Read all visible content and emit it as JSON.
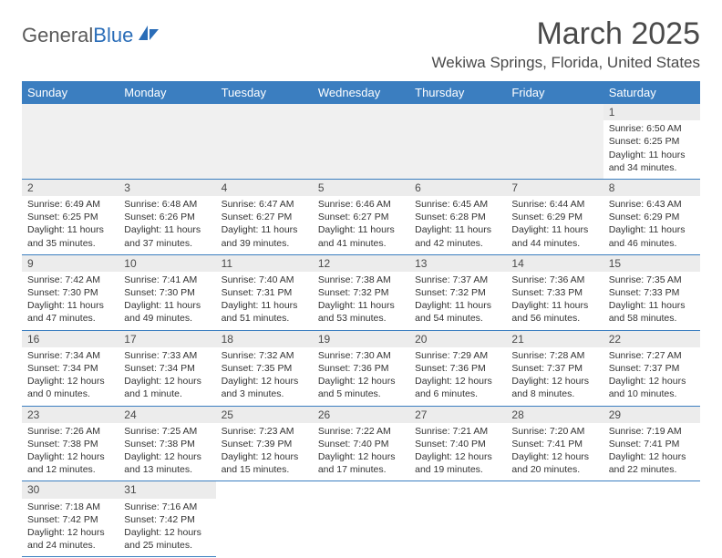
{
  "logo": {
    "text1": "General",
    "text2": "Blue"
  },
  "title": "March 2025",
  "location": "Wekiwa Springs, Florida, United States",
  "header_bg": "#3b7ec0",
  "weekdays": [
    "Sunday",
    "Monday",
    "Tuesday",
    "Wednesday",
    "Thursday",
    "Friday",
    "Saturday"
  ],
  "weeks": [
    [
      null,
      null,
      null,
      null,
      null,
      null,
      {
        "n": "1",
        "sr": "Sunrise: 6:50 AM",
        "ss": "Sunset: 6:25 PM",
        "dl": "Daylight: 11 hours and 34 minutes."
      }
    ],
    [
      {
        "n": "2",
        "sr": "Sunrise: 6:49 AM",
        "ss": "Sunset: 6:25 PM",
        "dl": "Daylight: 11 hours and 35 minutes."
      },
      {
        "n": "3",
        "sr": "Sunrise: 6:48 AM",
        "ss": "Sunset: 6:26 PM",
        "dl": "Daylight: 11 hours and 37 minutes."
      },
      {
        "n": "4",
        "sr": "Sunrise: 6:47 AM",
        "ss": "Sunset: 6:27 PM",
        "dl": "Daylight: 11 hours and 39 minutes."
      },
      {
        "n": "5",
        "sr": "Sunrise: 6:46 AM",
        "ss": "Sunset: 6:27 PM",
        "dl": "Daylight: 11 hours and 41 minutes."
      },
      {
        "n": "6",
        "sr": "Sunrise: 6:45 AM",
        "ss": "Sunset: 6:28 PM",
        "dl": "Daylight: 11 hours and 42 minutes."
      },
      {
        "n": "7",
        "sr": "Sunrise: 6:44 AM",
        "ss": "Sunset: 6:29 PM",
        "dl": "Daylight: 11 hours and 44 minutes."
      },
      {
        "n": "8",
        "sr": "Sunrise: 6:43 AM",
        "ss": "Sunset: 6:29 PM",
        "dl": "Daylight: 11 hours and 46 minutes."
      }
    ],
    [
      {
        "n": "9",
        "sr": "Sunrise: 7:42 AM",
        "ss": "Sunset: 7:30 PM",
        "dl": "Daylight: 11 hours and 47 minutes."
      },
      {
        "n": "10",
        "sr": "Sunrise: 7:41 AM",
        "ss": "Sunset: 7:30 PM",
        "dl": "Daylight: 11 hours and 49 minutes."
      },
      {
        "n": "11",
        "sr": "Sunrise: 7:40 AM",
        "ss": "Sunset: 7:31 PM",
        "dl": "Daylight: 11 hours and 51 minutes."
      },
      {
        "n": "12",
        "sr": "Sunrise: 7:38 AM",
        "ss": "Sunset: 7:32 PM",
        "dl": "Daylight: 11 hours and 53 minutes."
      },
      {
        "n": "13",
        "sr": "Sunrise: 7:37 AM",
        "ss": "Sunset: 7:32 PM",
        "dl": "Daylight: 11 hours and 54 minutes."
      },
      {
        "n": "14",
        "sr": "Sunrise: 7:36 AM",
        "ss": "Sunset: 7:33 PM",
        "dl": "Daylight: 11 hours and 56 minutes."
      },
      {
        "n": "15",
        "sr": "Sunrise: 7:35 AM",
        "ss": "Sunset: 7:33 PM",
        "dl": "Daylight: 11 hours and 58 minutes."
      }
    ],
    [
      {
        "n": "16",
        "sr": "Sunrise: 7:34 AM",
        "ss": "Sunset: 7:34 PM",
        "dl": "Daylight: 12 hours and 0 minutes."
      },
      {
        "n": "17",
        "sr": "Sunrise: 7:33 AM",
        "ss": "Sunset: 7:34 PM",
        "dl": "Daylight: 12 hours and 1 minute."
      },
      {
        "n": "18",
        "sr": "Sunrise: 7:32 AM",
        "ss": "Sunset: 7:35 PM",
        "dl": "Daylight: 12 hours and 3 minutes."
      },
      {
        "n": "19",
        "sr": "Sunrise: 7:30 AM",
        "ss": "Sunset: 7:36 PM",
        "dl": "Daylight: 12 hours and 5 minutes."
      },
      {
        "n": "20",
        "sr": "Sunrise: 7:29 AM",
        "ss": "Sunset: 7:36 PM",
        "dl": "Daylight: 12 hours and 6 minutes."
      },
      {
        "n": "21",
        "sr": "Sunrise: 7:28 AM",
        "ss": "Sunset: 7:37 PM",
        "dl": "Daylight: 12 hours and 8 minutes."
      },
      {
        "n": "22",
        "sr": "Sunrise: 7:27 AM",
        "ss": "Sunset: 7:37 PM",
        "dl": "Daylight: 12 hours and 10 minutes."
      }
    ],
    [
      {
        "n": "23",
        "sr": "Sunrise: 7:26 AM",
        "ss": "Sunset: 7:38 PM",
        "dl": "Daylight: 12 hours and 12 minutes."
      },
      {
        "n": "24",
        "sr": "Sunrise: 7:25 AM",
        "ss": "Sunset: 7:38 PM",
        "dl": "Daylight: 12 hours and 13 minutes."
      },
      {
        "n": "25",
        "sr": "Sunrise: 7:23 AM",
        "ss": "Sunset: 7:39 PM",
        "dl": "Daylight: 12 hours and 15 minutes."
      },
      {
        "n": "26",
        "sr": "Sunrise: 7:22 AM",
        "ss": "Sunset: 7:40 PM",
        "dl": "Daylight: 12 hours and 17 minutes."
      },
      {
        "n": "27",
        "sr": "Sunrise: 7:21 AM",
        "ss": "Sunset: 7:40 PM",
        "dl": "Daylight: 12 hours and 19 minutes."
      },
      {
        "n": "28",
        "sr": "Sunrise: 7:20 AM",
        "ss": "Sunset: 7:41 PM",
        "dl": "Daylight: 12 hours and 20 minutes."
      },
      {
        "n": "29",
        "sr": "Sunrise: 7:19 AM",
        "ss": "Sunset: 7:41 PM",
        "dl": "Daylight: 12 hours and 22 minutes."
      }
    ],
    [
      {
        "n": "30",
        "sr": "Sunrise: 7:18 AM",
        "ss": "Sunset: 7:42 PM",
        "dl": "Daylight: 12 hours and 24 minutes."
      },
      {
        "n": "31",
        "sr": "Sunrise: 7:16 AM",
        "ss": "Sunset: 7:42 PM",
        "dl": "Daylight: 12 hours and 25 minutes."
      },
      null,
      null,
      null,
      null,
      null
    ]
  ]
}
